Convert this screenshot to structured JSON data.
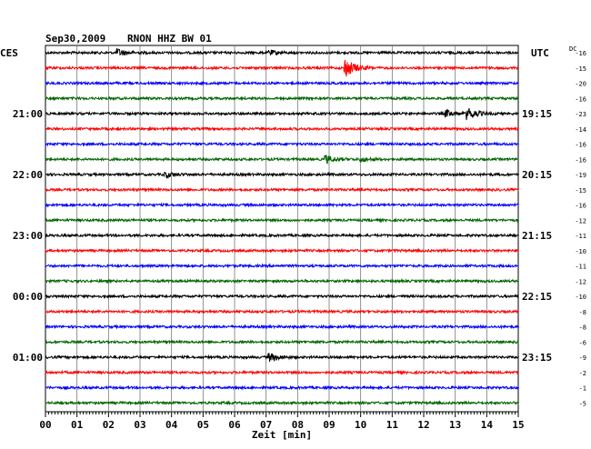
{
  "header": {
    "date": "Sep30,2009",
    "station": "RNON HHZ BW 01",
    "left_zone": "CES",
    "right_zone": "UTC",
    "dc_label": "DC"
  },
  "chart_data": {
    "type": "line",
    "title": "Sep30,2009    RNON HHZ BW 01",
    "xlabel": "Zeit [min]",
    "ylabel": "",
    "x_ticks": [
      "00",
      "01",
      "02",
      "03",
      "04",
      "05",
      "06",
      "07",
      "08",
      "09",
      "10",
      "11",
      "12",
      "13",
      "14",
      "15"
    ],
    "xlim": [
      0,
      15
    ],
    "trace_count": 24,
    "trace_colors": [
      "#000000",
      "#ff0000",
      "#0000ff",
      "#006400"
    ],
    "left_time_labels": [
      {
        "trace": 4,
        "text": "21:00"
      },
      {
        "trace": 8,
        "text": "22:00"
      },
      {
        "trace": 12,
        "text": "23:00"
      },
      {
        "trace": 16,
        "text": "00:00"
      },
      {
        "trace": 20,
        "text": "01:00"
      }
    ],
    "right_time_labels": [
      {
        "trace": 0,
        "text": "UTC"
      },
      {
        "trace": 4,
        "text": "19:15"
      },
      {
        "trace": 8,
        "text": "20:15"
      },
      {
        "trace": 12,
        "text": "21:15"
      },
      {
        "trace": 16,
        "text": "22:15"
      },
      {
        "trace": 20,
        "text": "23:15"
      }
    ],
    "dc_offsets": [
      -16,
      -15,
      -20,
      -16,
      -23,
      -14,
      -16,
      -16,
      -19,
      -15,
      -16,
      -12,
      -11,
      -10,
      -11,
      -12,
      -10,
      -8,
      -8,
      -6,
      -9,
      -2,
      -1,
      -5
    ],
    "events": [
      {
        "trace": 0,
        "minute": 2.3,
        "strength": 0.9
      },
      {
        "trace": 0,
        "minute": 7.1,
        "strength": 0.6
      },
      {
        "trace": 1,
        "minute": 9.5,
        "strength": 2.6
      },
      {
        "trace": 4,
        "minute": 12.7,
        "strength": 0.9
      },
      {
        "trace": 4,
        "minute": 13.4,
        "strength": 1.4
      },
      {
        "trace": 7,
        "minute": 8.9,
        "strength": 1.0
      },
      {
        "trace": 7,
        "minute": 10.0,
        "strength": 0.6
      },
      {
        "trace": 8,
        "minute": 3.8,
        "strength": 0.7
      },
      {
        "trace": 20,
        "minute": 7.1,
        "strength": 1.0
      }
    ]
  }
}
